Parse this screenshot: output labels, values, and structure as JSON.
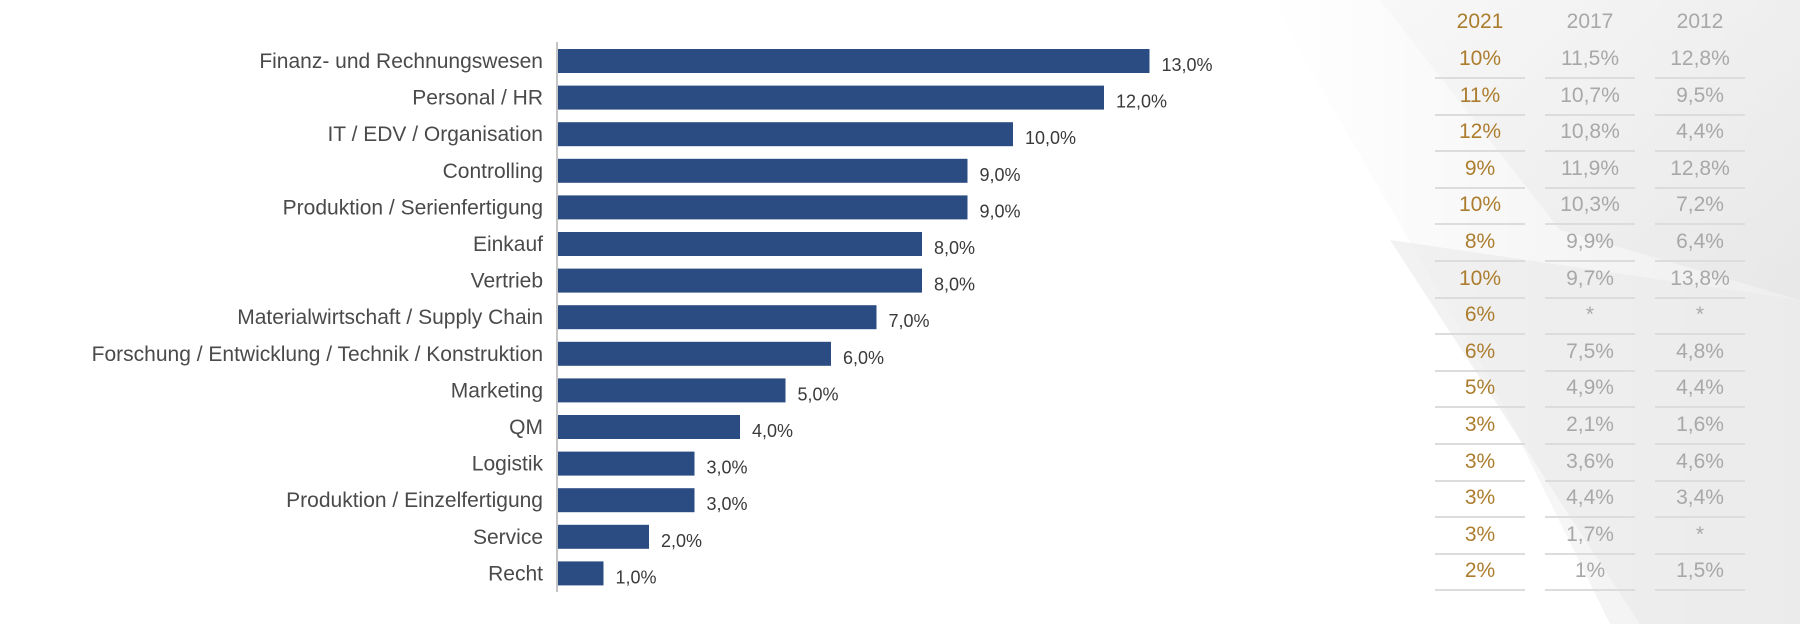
{
  "colors": {
    "bar": "#2b4c82",
    "highlight_year": "#ac7d2e",
    "past_years": "#a8a8a8",
    "divider": "#dcdcdc"
  },
  "chart_data": {
    "type": "bar",
    "orientation": "horizontal",
    "title": "",
    "xlabel": "",
    "ylabel": "",
    "xlim": [
      0,
      14
    ],
    "grid": false,
    "categories": [
      "Finanz- und Rechnungswesen",
      "Personal / HR",
      "IT / EDV / Organisation",
      "Controlling",
      "Produktion / Serienfertigung",
      "Einkauf",
      "Vertrieb",
      "Materialwirtschaft / Supply Chain",
      "Forschung / Entwicklung / Technik / Konstruktion",
      "Marketing",
      "QM",
      "Logistik",
      "Produktion / Einzelfertigung",
      "Service",
      "Recht"
    ],
    "values": [
      13.0,
      12.0,
      10.0,
      9.0,
      9.0,
      8.0,
      8.0,
      7.0,
      6.0,
      5.0,
      4.0,
      3.0,
      3.0,
      2.0,
      1.0
    ],
    "value_labels": [
      "13,0%",
      "12,0%",
      "10,0%",
      "9,0%",
      "9,0%",
      "8,0%",
      "8,0%",
      "7,0%",
      "6,0%",
      "5,0%",
      "4,0%",
      "3,0%",
      "3,0%",
      "2,0%",
      "1,0%"
    ]
  },
  "comparison_table": {
    "columns": [
      {
        "year": "2021",
        "values": [
          "10%",
          "11%",
          "12%",
          "9%",
          "10%",
          "8%",
          "10%",
          "6%",
          "6%",
          "5%",
          "3%",
          "3%",
          "3%",
          "3%",
          "2%"
        ]
      },
      {
        "year": "2017",
        "values": [
          "11,5%",
          "10,7%",
          "10,8%",
          "11,9%",
          "10,3%",
          "9,9%",
          "9,7%",
          "*",
          "7,5%",
          "4,9%",
          "2,1%",
          "3,6%",
          "4,4%",
          "1,7%",
          "1%"
        ]
      },
      {
        "year": "2012",
        "values": [
          "12,8%",
          "9,5%",
          "4,4%",
          "12,8%",
          "7,2%",
          "6,4%",
          "13,8%",
          "*",
          "4,8%",
          "4,4%",
          "1,6%",
          "4,6%",
          "3,4%",
          "*",
          "1,5%"
        ]
      }
    ]
  }
}
